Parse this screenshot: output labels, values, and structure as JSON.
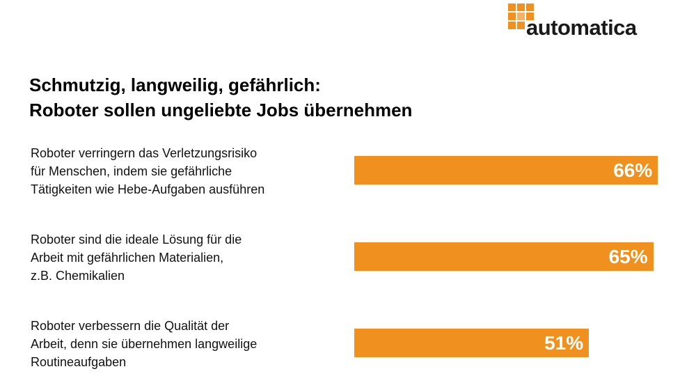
{
  "chart_data": {
    "type": "bar",
    "logo": "automatica",
    "title": "Schmutzig, langweilig, gefährlich:\nRoboter sollen ungeliebte Jobs übernehmen",
    "categories": [
      "Roboter verringern das Verletzungsrisiko\nfür Menschen, indem sie gefährliche\nTätigkeiten wie Hebe-Aufgaben ausführen",
      "Roboter sind die ideale Lösung für die\nArbeit mit gefährlichen Materialien,\nz.B. Chemikalien",
      "Roboter verbessern die Qualität der\nArbeit, denn sie übernehmen langweilige\nRoutineaufgaben"
    ],
    "values": [
      66,
      65,
      51
    ],
    "value_labels": [
      "66%",
      "65%",
      "51%"
    ],
    "color": "#f0901e"
  }
}
